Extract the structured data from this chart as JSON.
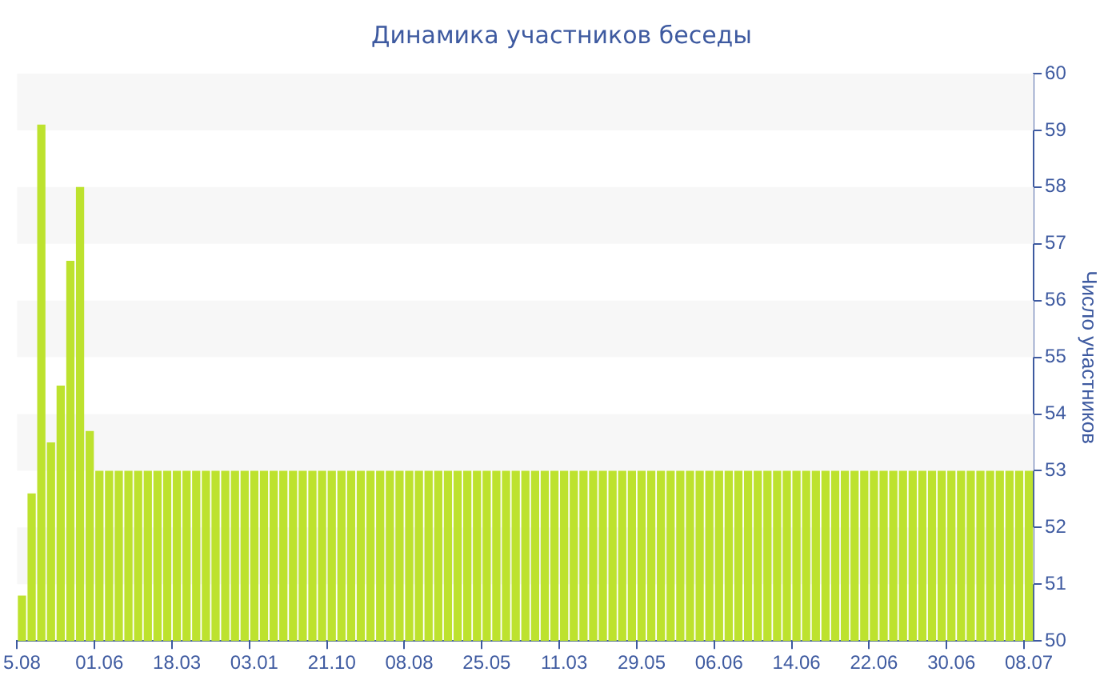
{
  "chart_data": {
    "type": "bar",
    "title": "Динамика участников беседы",
    "ylabel": "Число участников",
    "categories": [
      "5.08",
      null,
      null,
      null,
      null,
      null,
      null,
      null,
      "01.06",
      null,
      null,
      null,
      null,
      null,
      null,
      null,
      "18.03",
      null,
      null,
      null,
      null,
      null,
      null,
      null,
      "03.01",
      null,
      null,
      null,
      null,
      null,
      null,
      null,
      "21.10",
      null,
      null,
      null,
      null,
      null,
      null,
      null,
      "08.08",
      null,
      null,
      null,
      null,
      null,
      null,
      null,
      "25.05",
      null,
      null,
      null,
      null,
      null,
      null,
      null,
      "11.03",
      null,
      null,
      null,
      null,
      null,
      null,
      null,
      "29.05",
      null,
      null,
      null,
      null,
      null,
      null,
      null,
      "06.06",
      null,
      null,
      null,
      null,
      null,
      null,
      null,
      "14.06",
      null,
      null,
      null,
      null,
      null,
      null,
      null,
      "22.06",
      null,
      null,
      null,
      null,
      null,
      null,
      null,
      "30.06",
      null,
      null,
      null,
      null,
      null,
      null,
      null,
      "08.07"
    ],
    "values": [
      50.8,
      52.6,
      59.1,
      53.5,
      54.5,
      56.7,
      58,
      53.7,
      53,
      53,
      53,
      53,
      53,
      53,
      53,
      53,
      53,
      53,
      53,
      53,
      53,
      53,
      53,
      53,
      53,
      53,
      53,
      53,
      53,
      53,
      53,
      53,
      53,
      53,
      53,
      53,
      53,
      53,
      53,
      53,
      53,
      53,
      53,
      53,
      53,
      53,
      53,
      53,
      53,
      53,
      53,
      53,
      53,
      53,
      53,
      53,
      53,
      53,
      53,
      53,
      53,
      53,
      53,
      53,
      53,
      53,
      53,
      53,
      53,
      53,
      53,
      53,
      53,
      53,
      53,
      53,
      53,
      53,
      53,
      53,
      53,
      53,
      53,
      53,
      53,
      53,
      53,
      53,
      53,
      53,
      53,
      53,
      53,
      53,
      53,
      53,
      53,
      53,
      53,
      53,
      53,
      53,
      53,
      53,
      53
    ],
    "color": "#bde22e",
    "ylim": [
      50,
      60
    ],
    "yticks": [
      50,
      51,
      52,
      53,
      54,
      55,
      56,
      57,
      58,
      59,
      60
    ],
    "legend": false
  }
}
